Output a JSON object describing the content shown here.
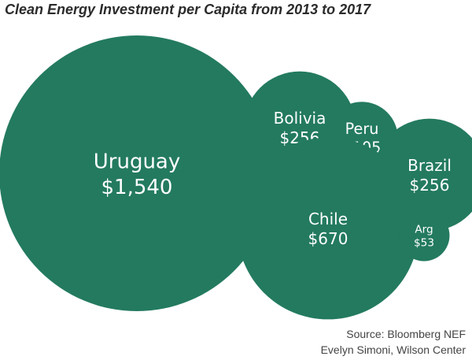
{
  "chart_data": {
    "type": "bubble",
    "title": "Clean Energy Investment per Capita from 2013 to 2017",
    "categories": [
      "Uruguay",
      "Bolivia",
      "Peru",
      "Brazil",
      "Chile",
      "Arg"
    ],
    "value_labels": [
      "$1,540",
      "$256",
      "$105",
      "$256",
      "$670",
      "$53"
    ],
    "values": [
      1540,
      256,
      105,
      256,
      670,
      53
    ],
    "color": "#237a5f"
  },
  "footer": {
    "source": "Source: Bloomberg NEF",
    "credit": "Evelyn Simoni, Wilson Center"
  }
}
